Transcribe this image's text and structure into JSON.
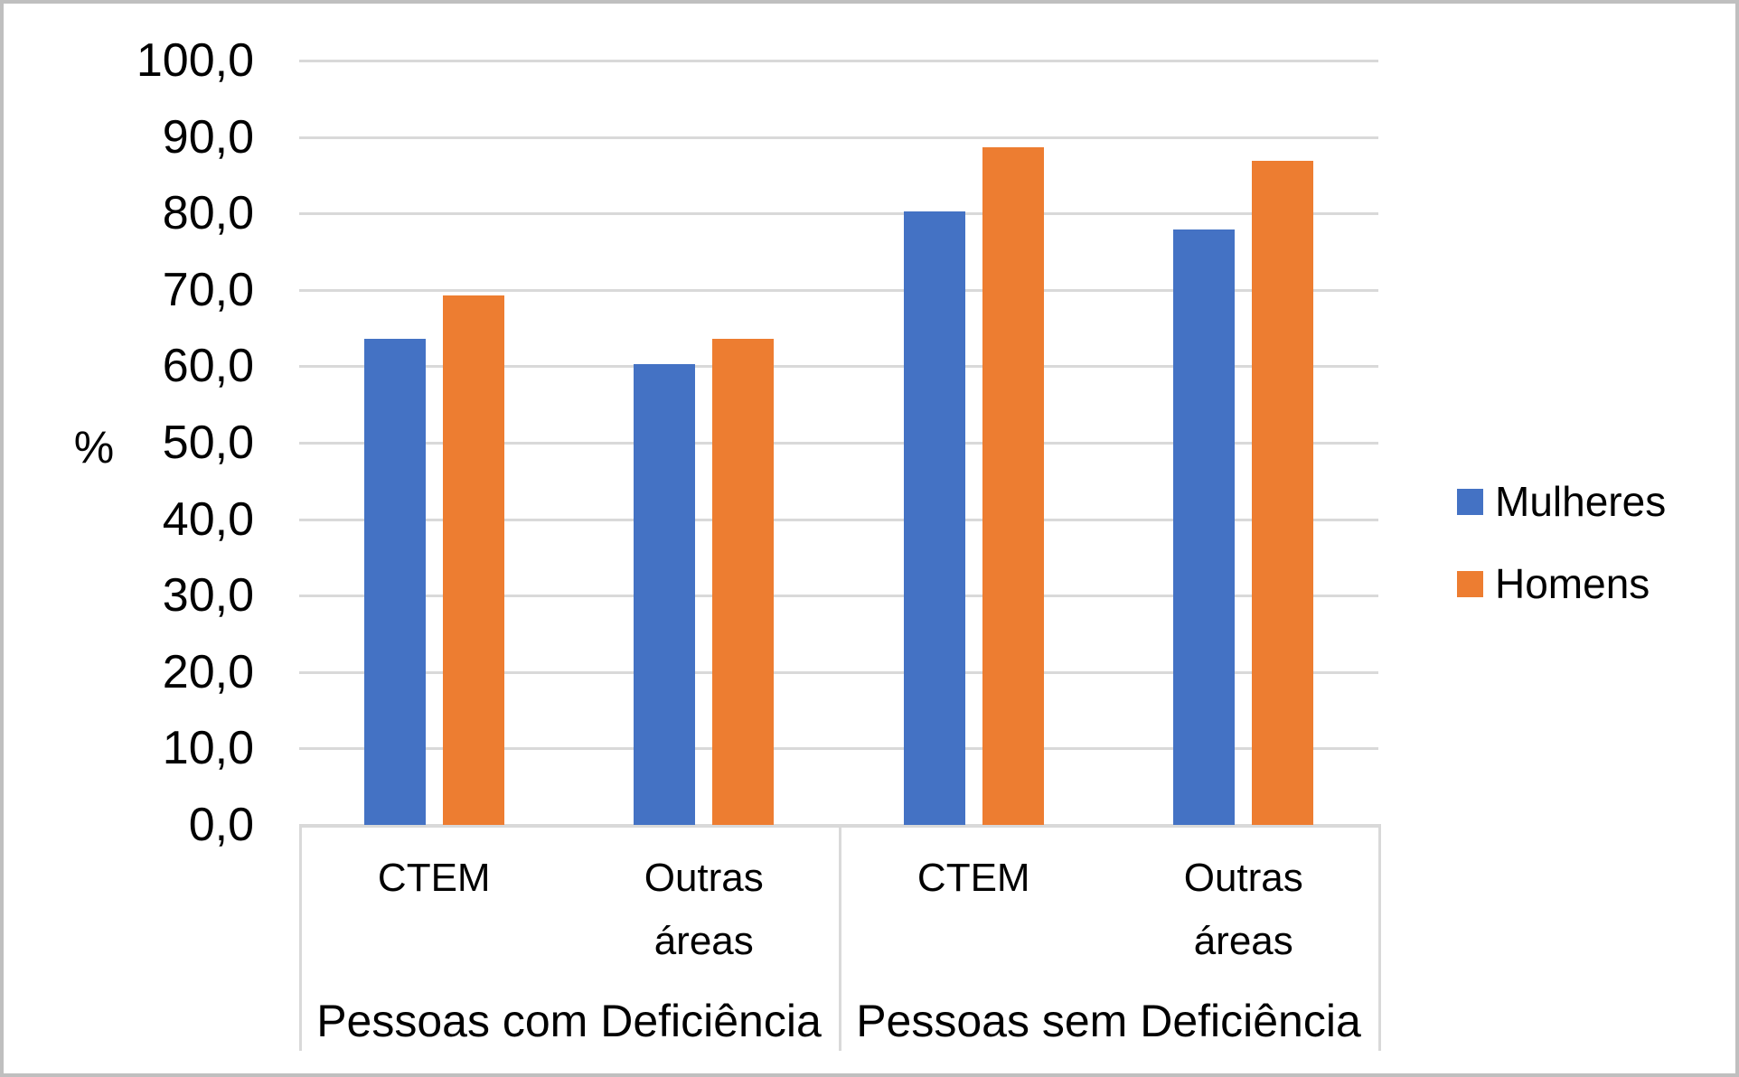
{
  "chart_data": {
    "type": "bar",
    "title": "",
    "ylabel": "%",
    "ylim": [
      0,
      100
    ],
    "ytick_step": 10,
    "yticks": [
      {
        "value": 100,
        "label": "100,0"
      },
      {
        "value": 90,
        "label": "90,0"
      },
      {
        "value": 80,
        "label": "80,0"
      },
      {
        "value": 70,
        "label": "70,0"
      },
      {
        "value": 60,
        "label": "60,0"
      },
      {
        "value": 50,
        "label": "50,0"
      },
      {
        "value": 40,
        "label": "40,0"
      },
      {
        "value": 30,
        "label": "30,0"
      },
      {
        "value": 20,
        "label": "20,0"
      },
      {
        "value": 10,
        "label": "10,0"
      },
      {
        "value": 0,
        "label": "0,0"
      }
    ],
    "categories": [
      "CTEM",
      "Outras áreas",
      "CTEM",
      "Outras áreas"
    ],
    "groups": [
      {
        "label": "Pessoas com Deficiência",
        "categories": [
          "CTEM",
          "Outras áreas"
        ]
      },
      {
        "label": "Pessoas sem Deficiência",
        "categories": [
          "CTEM",
          "Outras áreas"
        ]
      }
    ],
    "series": [
      {
        "name": "Mulheres",
        "color": "#4472c4",
        "values": [
          63.6,
          60.3,
          80.3,
          77.9
        ]
      },
      {
        "name": "Homens",
        "color": "#ed7d31",
        "values": [
          69.3,
          63.6,
          88.7,
          86.9
        ]
      }
    ],
    "legend_position": "right",
    "grid": true,
    "gridline_color": "#d9d9d9",
    "axis_line_color": "#d9d9d9"
  }
}
